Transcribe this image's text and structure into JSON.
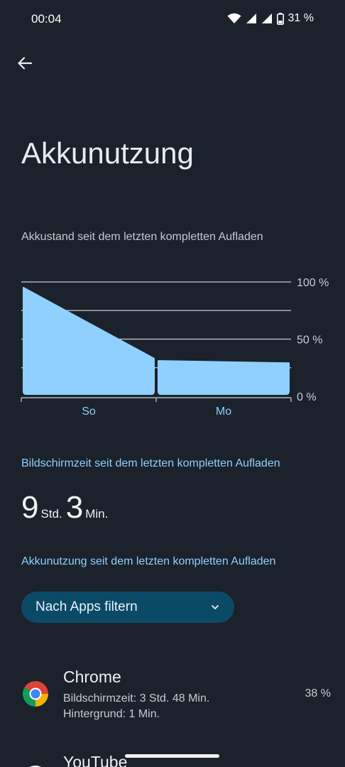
{
  "status_bar": {
    "time": "00:04",
    "battery_percent": "31 %"
  },
  "header": {
    "back_icon": "arrow-left-icon",
    "title": "Akkunutzung"
  },
  "chart_section": {
    "label": "Akkustand seit dem letzten kompletten Aufladen"
  },
  "chart_data": {
    "type": "area",
    "title": "",
    "categories": [
      "So",
      "Mo"
    ],
    "y_ticks": [
      "100 %",
      "50 %",
      "0 %"
    ],
    "ylim": [
      0,
      100
    ],
    "fill_color": "#8fd0ff",
    "grid": true,
    "series": [
      {
        "segment": "So",
        "start": 95,
        "end": 33
      },
      {
        "segment": "Mo",
        "start": 31,
        "end": 29
      }
    ]
  },
  "screen_time": {
    "title": "Bildschirmzeit seit dem letzten kompletten Aufladen",
    "hours": "9",
    "hours_unit": "Std.",
    "minutes": "3",
    "minutes_unit": "Min."
  },
  "usage": {
    "title": "Akkunutzung seit dem letzten kompletten Aufladen",
    "filter_label": "Nach Apps filtern",
    "apps": [
      {
        "name": "Chrome",
        "screen_time": "Bildschirmzeit: 3 Std. 48 Min.",
        "background": "Hintergrund: 1 Min.",
        "percent": "38 %",
        "icon": "chrome-icon"
      },
      {
        "name": "YouTube",
        "icon": "youtube-icon"
      }
    ]
  },
  "colors": {
    "background": "#1b222b",
    "accent": "#8fd0ff",
    "chip": "#0b4a67"
  }
}
